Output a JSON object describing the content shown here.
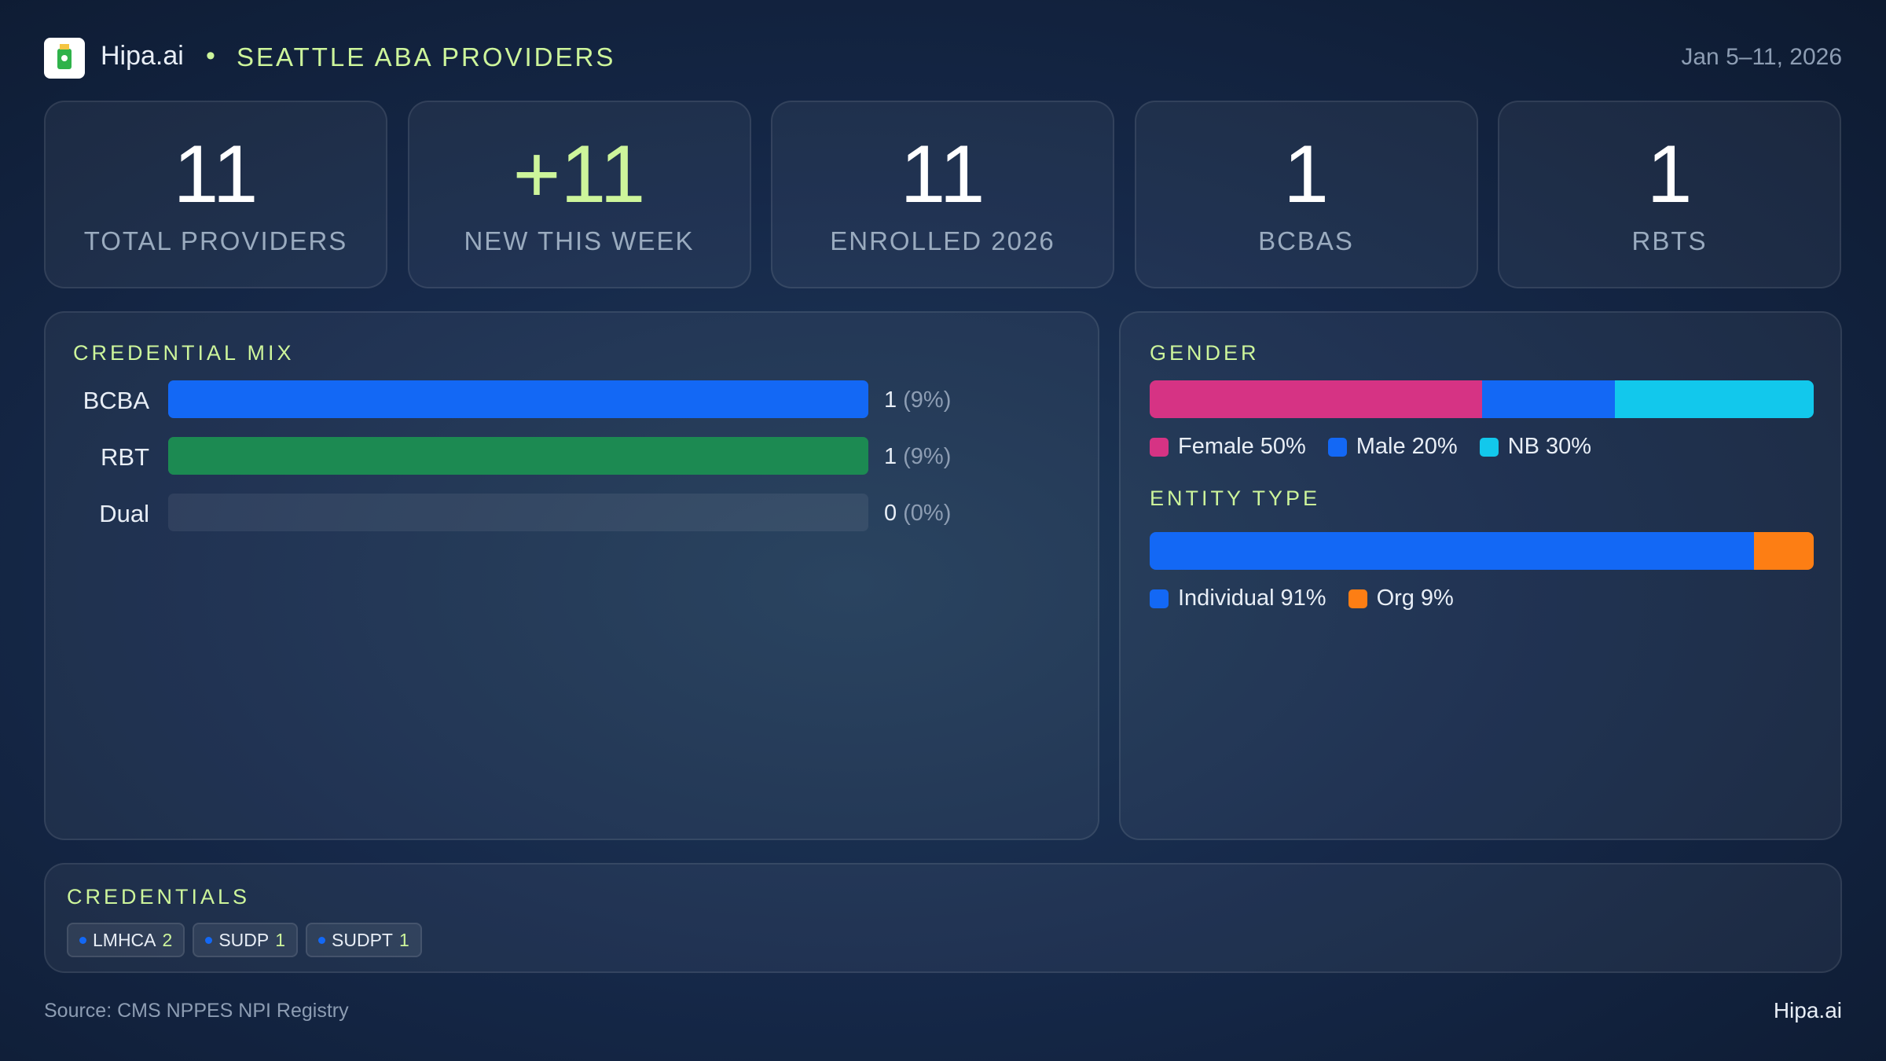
{
  "header": {
    "brand": "Hipa.ai",
    "title": "SEATTLE ABA PROVIDERS",
    "date": "Jan 5–11, 2026"
  },
  "kpis": [
    {
      "value": "11",
      "label": "TOTAL PROVIDERS"
    },
    {
      "value": "+11",
      "label": "NEW THIS WEEK"
    },
    {
      "value": "11",
      "label": "ENROLLED 2026"
    },
    {
      "value": "1",
      "label": "BCBAS"
    },
    {
      "value": "1",
      "label": "RBTS"
    }
  ],
  "credential_mix": {
    "title": "CREDENTIAL MIX",
    "rows": [
      {
        "label": "BCBA",
        "value": 1,
        "percent_label": "(9%)",
        "color": "#1368f5"
      },
      {
        "label": "RBT",
        "value": 1,
        "percent_label": "(9%)",
        "color": "#1c8a52"
      },
      {
        "label": "Dual",
        "value": 0,
        "percent_label": "(0%)",
        "color": "#8a5cf0"
      }
    ]
  },
  "gender": {
    "title": "GENDER",
    "segments": [
      {
        "name": "Female",
        "value": 50,
        "value_label": "50%",
        "color": "#d63384"
      },
      {
        "name": "Male",
        "value": 20,
        "value_label": "20%",
        "color": "#1368f5"
      },
      {
        "name": "NB",
        "value": 30,
        "value_label": "30%",
        "color": "#12c8ec"
      }
    ]
  },
  "entity_type": {
    "title": "ENTITY TYPE",
    "segments": [
      {
        "name": "Individual",
        "value": 91,
        "value_label": "91%",
        "color": "#1368f5"
      },
      {
        "name": "Org",
        "value": 9,
        "value_label": "9%",
        "color": "#fd7e14"
      }
    ]
  },
  "credentials": {
    "title": "CREDENTIALS",
    "chips": [
      {
        "name": "LMHCA",
        "count": "2"
      },
      {
        "name": "SUDP",
        "count": "1"
      },
      {
        "name": "SUDPT",
        "count": "1"
      }
    ]
  },
  "footer": {
    "source": "Source: CMS NPPES NPI Registry",
    "brand": "Hipa.ai"
  }
}
